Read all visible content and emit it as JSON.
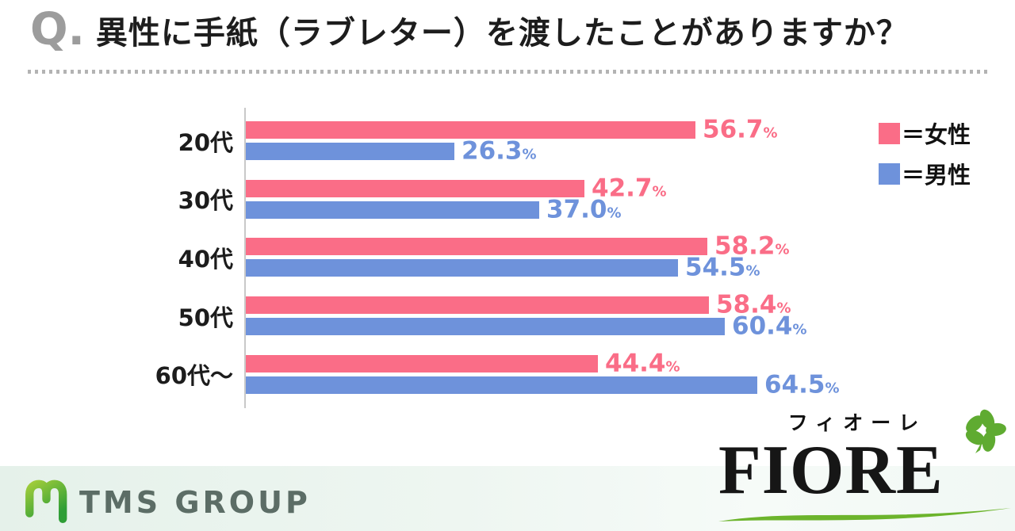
{
  "header": {
    "q_prefix": "Q.",
    "title": "異性に手紙（ラブレター）を渡したことがありますか？"
  },
  "legend": {
    "items": [
      {
        "label": "＝女性",
        "color": "#FA6D87"
      },
      {
        "label": "＝男性",
        "color": "#6E92DB"
      }
    ]
  },
  "chart_data": {
    "type": "bar",
    "orientation": "horizontal",
    "title": "異性に手紙（ラブレター）を渡したことがありますか？",
    "categories": [
      "20代",
      "30代",
      "40代",
      "50代",
      "60代～"
    ],
    "series": [
      {
        "name": "女性",
        "color": "#FA6D87",
        "values": [
          56.7,
          42.7,
          58.2,
          58.4,
          44.4
        ]
      },
      {
        "name": "男性",
        "color": "#6E92DB",
        "values": [
          26.3,
          37.0,
          54.5,
          60.4,
          64.5
        ]
      }
    ],
    "unit": "%",
    "value_labels": "outside-end",
    "xlim": [
      0,
      65
    ],
    "grid": false,
    "x_ticks_shown": false,
    "legend_position": "top-right"
  },
  "footer": {
    "tms": {
      "name": "TMS GROUP",
      "text_color": "#5C6D66",
      "green_light": "#9FCC3B",
      "green_dark": "#2E9E36"
    },
    "fiore": {
      "kana": "フィオーレ",
      "name": "FIORE",
      "green": "#5FAB31"
    }
  },
  "style": {
    "female_color": "#FA6D87",
    "male_color": "#6E92DB",
    "axis_color": "#C9C9C9",
    "q_color": "#9C9C9C",
    "title_color": "#1D1D1D"
  }
}
